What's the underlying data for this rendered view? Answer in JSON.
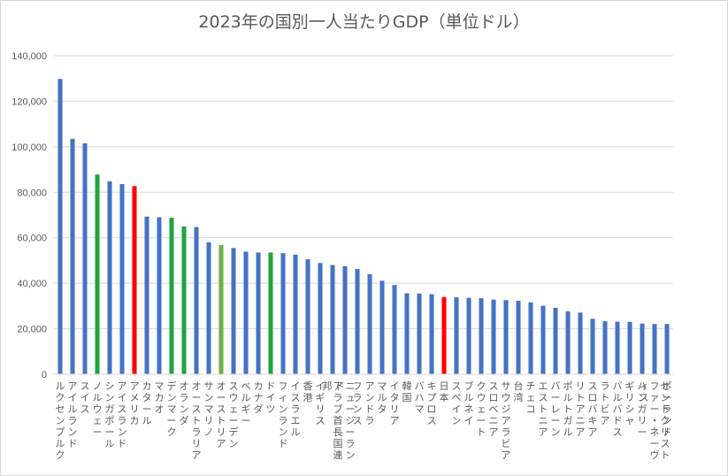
{
  "chart_data": {
    "type": "bar",
    "title": "2023年の国別一人当たりGDP（単位ドル）",
    "xlabel": "",
    "ylabel": "",
    "ylim": [
      0,
      140000
    ],
    "yticks": [
      "0",
      "20,000",
      "40,000",
      "60,000",
      "80,000",
      "100,000",
      "120,000",
      "140,000"
    ],
    "grid": true,
    "legend": "none",
    "categories": [
      "ルクセンブルク",
      "アイルランド",
      "スイス",
      "ノルウェー",
      "シンガポール",
      "アイスランド",
      "アメリカ",
      "カタール",
      "マカオ",
      "デンマーク",
      "オランダ",
      "オーストラリア",
      "サンマリノ",
      "オーストリア",
      "スウェーデン",
      "ベルギー",
      "カナダ",
      "ドイツ",
      "フィンランド",
      "イスラエル",
      "香港",
      "イギリス",
      "アラブ首長国連邦",
      "ニュージーランド",
      "フランス",
      "アンドラ",
      "マルタ",
      "イタリア",
      "韓国",
      "バハマ",
      "キプロス",
      "日本",
      "スペイン",
      "ブルネイ",
      "クウェート",
      "スロベニア",
      "サウジアラビア",
      "台湾",
      "チェコ",
      "エストニア",
      "バーレーン",
      "ポルトガル",
      "リトアニア",
      "スロバキア",
      "ラトビア",
      "バルバドス",
      "ギリシャ",
      "ハンガリー",
      "セントクリストファー・ネーヴィス",
      "ポーランド"
    ],
    "values": [
      129800,
      103500,
      101500,
      87800,
      84800,
      83600,
      82700,
      69300,
      69000,
      68800,
      64900,
      64700,
      58000,
      56800,
      55500,
      53900,
      53500,
      53500,
      53200,
      52600,
      50600,
      48900,
      48000,
      47500,
      46300,
      44000,
      41100,
      39200,
      35600,
      35500,
      35200,
      33900,
      33800,
      33600,
      33400,
      32800,
      32600,
      32300,
      31600,
      30100,
      29200,
      27700,
      27100,
      24400,
      23300,
      23100,
      23000,
      22300,
      22100,
      22100
    ],
    "colors": {
      "default": "#4472c4",
      "red": "#ff0000",
      "green": "#21a340",
      "olive": "#70ad47"
    },
    "bar_colors": [
      "default",
      "default",
      "default",
      "green",
      "default",
      "default",
      "red",
      "default",
      "default",
      "green",
      "green",
      "default",
      "default",
      "olive",
      "default",
      "default",
      "default",
      "green",
      "default",
      "default",
      "default",
      "default",
      "default",
      "default",
      "default",
      "default",
      "default",
      "default",
      "default",
      "default",
      "default",
      "red",
      "default",
      "default",
      "default",
      "default",
      "default",
      "default",
      "default",
      "default",
      "default",
      "default",
      "default",
      "default",
      "default",
      "default",
      "default",
      "default",
      "default",
      "default"
    ]
  }
}
